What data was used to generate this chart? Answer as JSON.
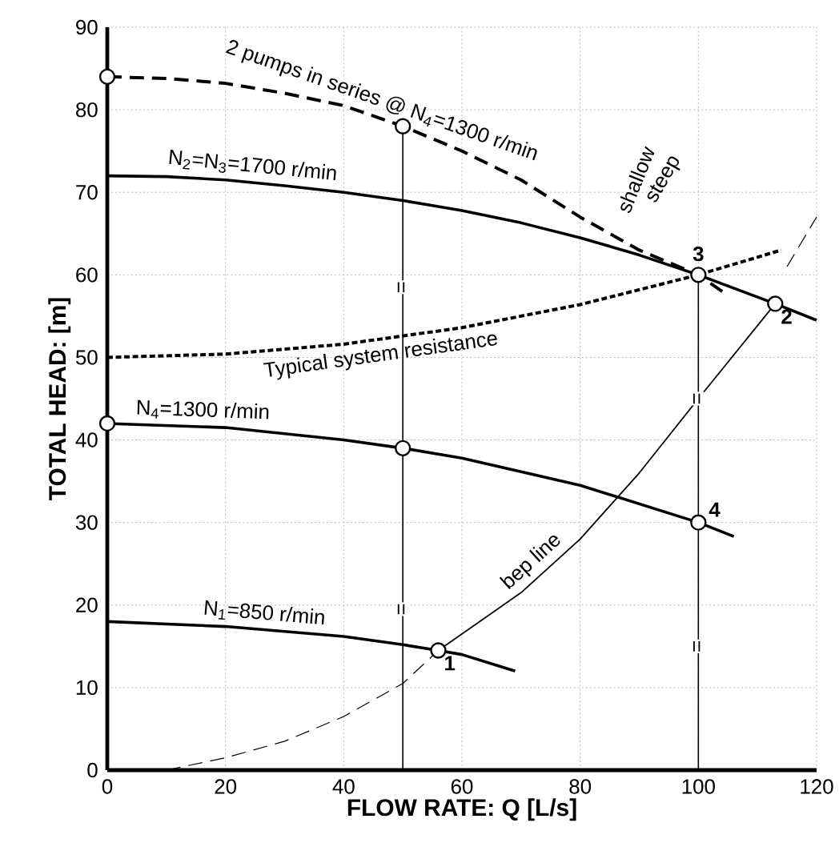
{
  "chart_data": {
    "type": "line",
    "xlabel": "FLOW RATE: Q [L/s]",
    "ylabel": "TOTAL HEAD: [m]",
    "xlim": [
      0,
      120
    ],
    "ylim": [
      0,
      90
    ],
    "xticks": [
      0,
      20,
      40,
      60,
      80,
      100,
      120
    ],
    "yticks": [
      0,
      10,
      20,
      30,
      40,
      50,
      60,
      70,
      80,
      90
    ],
    "grid": true,
    "marker": "none",
    "series": [
      {
        "name": "2 pumps in series @ N$_{4}$=1300 r/min",
        "color": "#000000",
        "line_style": "dashed",
        "x": [
          0,
          10,
          20,
          30,
          40,
          50,
          60,
          70,
          80,
          90,
          100,
          105
        ],
        "values": [
          84,
          83.8,
          83.2,
          82,
          80.5,
          78,
          75,
          71.5,
          67,
          63,
          60,
          57.5
        ]
      },
      {
        "name": "N$_{2}$=N$_{3}$=1700 r/min",
        "color": "#000000",
        "line_style": "solid",
        "x": [
          0,
          10,
          20,
          30,
          40,
          50,
          60,
          70,
          80,
          90,
          100,
          113,
          120
        ],
        "values": [
          72,
          71.9,
          71.5,
          70.8,
          70,
          69,
          67.8,
          66.3,
          64.5,
          62.4,
          60,
          56.5,
          54.5
        ]
      },
      {
        "name": "Typical system resistance",
        "color": "#000000",
        "line_style": "dotted",
        "x": [
          0,
          20,
          40,
          60,
          80,
          100,
          114
        ],
        "values": [
          50,
          50.4,
          51.6,
          53.6,
          56.4,
          60,
          63
        ]
      },
      {
        "name": "N$_{4}$=1300 r/min",
        "color": "#000000",
        "line_style": "solid",
        "x": [
          0,
          20,
          40,
          50,
          60,
          80,
          100,
          106
        ],
        "values": [
          42,
          41.5,
          40,
          39,
          37.8,
          34.5,
          30,
          28.3
        ]
      },
      {
        "name": "N$_{1}$=850 r/min",
        "color": "#000000",
        "line_style": "solid",
        "x": [
          0,
          20,
          40,
          50,
          56,
          60,
          69
        ],
        "values": [
          18,
          17.4,
          16.2,
          15.2,
          14.5,
          14,
          12
        ]
      },
      {
        "name": "bep line",
        "color": "#000000",
        "line_style": "solid",
        "x": [
          56,
          70,
          80,
          90,
          100,
          113
        ],
        "values": [
          14.5,
          21.5,
          28,
          36,
          45,
          56.5
        ]
      },
      {
        "color": "#000000",
        "line_style": "dashed",
        "x": [
          10,
          20,
          30,
          40,
          50,
          56
        ],
        "values": [
          0,
          1.5,
          3.5,
          6.5,
          10.5,
          14.5
        ]
      },
      {
        "color": "#000000",
        "line_style": "dashed",
        "x": [
          115,
          120
        ],
        "values": [
          61,
          67
        ]
      },
      {
        "color": "#000000",
        "line_style": "solid",
        "x": [
          50,
          50
        ],
        "values": [
          0,
          39
        ]
      },
      {
        "color": "#000000",
        "line_style": "solid",
        "x": [
          50,
          50
        ],
        "values": [
          39,
          78
        ]
      },
      {
        "color": "#000000",
        "line_style": "solid",
        "x": [
          100,
          100
        ],
        "values": [
          0,
          30
        ]
      },
      {
        "color": "#000000",
        "line_style": "solid",
        "x": [
          100,
          100
        ],
        "values": [
          30,
          60
        ]
      },
      {
        "type": "scatter",
        "marker": "circle",
        "color": "#000000",
        "x": [
          0,
          50,
          0,
          50,
          56,
          113,
          100,
          100
        ],
        "values": [
          84,
          78,
          42,
          39,
          14.5,
          56.5,
          60,
          30
        ]
      }
    ],
    "annotations": [
      {
        "text": "1",
        "x": 56,
        "y": 14.5
      },
      {
        "text": "2",
        "x": 113,
        "y": 56.5
      },
      {
        "text": "3",
        "x": 100,
        "y": 60
      },
      {
        "text": "4",
        "x": 100,
        "y": 30
      },
      "shallow",
      "steep",
      {
        "text": "=",
        "x": 50,
        "y": 19.5
      },
      {
        "text": "=",
        "x": 50,
        "y": 58.5
      },
      {
        "text": "=",
        "x": 100,
        "y": 15
      },
      {
        "text": "=",
        "x": 100,
        "y": 45
      }
    ]
  }
}
